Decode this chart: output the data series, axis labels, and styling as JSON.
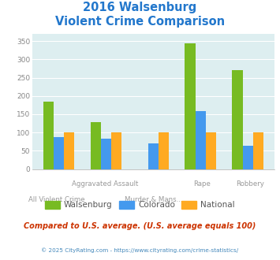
{
  "title_line1": "2016 Walsenburg",
  "title_line2": "Violent Crime Comparison",
  "categories": [
    "All Violent Crime",
    "Aggravated Assault",
    "Murder & Mans...",
    "Rape",
    "Robbery"
  ],
  "cat_top": [
    "",
    "Aggravated Assault",
    "",
    "Rape",
    "Robbery"
  ],
  "cat_bot": [
    "All Violent Crime",
    "",
    "Murder & Mans...",
    "",
    ""
  ],
  "walsenburg": [
    185,
    128,
    0,
    343,
    270
  ],
  "colorado": [
    87,
    84,
    70,
    158,
    63
  ],
  "national": [
    100,
    100,
    100,
    100,
    100
  ],
  "color_walsenburg": "#77bb22",
  "color_colorado": "#4499ee",
  "color_national": "#ffaa22",
  "ylim": [
    0,
    370
  ],
  "yticks": [
    0,
    50,
    100,
    150,
    200,
    250,
    300,
    350
  ],
  "bg_chart": "#ddeef0",
  "bg_fig": "#ffffff",
  "title_color": "#2277cc",
  "tick_color": "#888888",
  "footer_note": "Compared to U.S. average. (U.S. average equals 100)",
  "footer_copy": "© 2025 CityRating.com - https://www.cityrating.com/crime-statistics/",
  "footer_note_color": "#cc3300",
  "footer_copy_color": "#4488bb",
  "bar_width": 0.22,
  "group_positions": [
    0,
    1,
    2,
    3,
    4
  ]
}
